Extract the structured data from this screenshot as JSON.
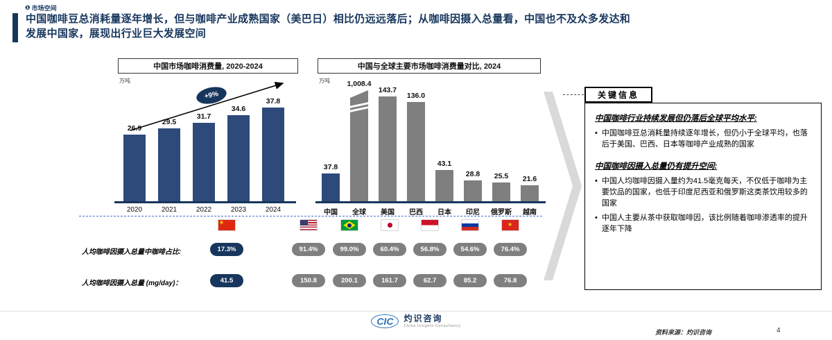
{
  "header": {
    "tag_icon": "❶",
    "tag_label": "市场空间",
    "title_line1": "中国咖啡豆总消耗量逐年增长，但与咖啡产业成熟国家（美巴日）相比仍远远落后；从咖啡因摄入总量看，中国也不及众多发达和",
    "title_line2": "发展中国家，展现出行业巨大发展空间"
  },
  "colors": {
    "navy": "#17365d",
    "bar_navy": "#2e4a7b",
    "bar_gray": "#7f7f7f",
    "dashed_line_blue": "#4472c4",
    "chevron_gray": "#d9d9d9",
    "logo_blue": "#2e75b6"
  },
  "chart_data": [
    {
      "type": "bar",
      "title": "中国市场咖啡消费量, 2020-2024",
      "unit": "万吨",
      "categories": [
        "2020",
        "2021",
        "2022",
        "2023",
        "2024"
      ],
      "values": [
        26.9,
        29.5,
        31.7,
        34.6,
        37.8
      ],
      "labels": [
        "26.9",
        "29.5",
        "31.7",
        "34.6",
        "37.8"
      ],
      "growth_label": "+9%",
      "bar_color": "#2e4a7b",
      "ylim": [
        0,
        40
      ],
      "grid": false,
      "legend": "none"
    },
    {
      "type": "bar",
      "title": "中国与全球主要市场咖啡消费量对比, 2024",
      "unit": "万吨",
      "categories": [
        "中国",
        "全球",
        "美国",
        "巴西",
        "日本",
        "印尼",
        "俄罗斯",
        "越南"
      ],
      "values": [
        37.8,
        1008.4,
        143.7,
        136.0,
        43.1,
        28.8,
        25.5,
        21.6
      ],
      "labels": [
        "37.8",
        "1,008.4",
        "143.7",
        "136.0",
        "43.1",
        "28.8",
        "25.5",
        "21.6"
      ],
      "bar_color": "#7f7f7f",
      "highlight": {
        "index": 0,
        "color": "#2e4a7b"
      },
      "axis_break_index": 1,
      "grid": false,
      "legend": "none"
    }
  ],
  "comparison": {
    "row1_label": "人均咖啡因摄入总量中咖啡占比:",
    "row2_label": "人均咖啡因摄入总量 (mg/day)：",
    "countries": [
      {
        "name": "中国",
        "flag": "china",
        "coffee_share": "17.3%",
        "intake_mg": "41.5",
        "highlight": true
      },
      {
        "name": "美国",
        "flag": "usa",
        "coffee_share": "91.4%",
        "intake_mg": "150.8"
      },
      {
        "name": "巴西",
        "flag": "brazil",
        "coffee_share": "99.0%",
        "intake_mg": "200.1"
      },
      {
        "name": "日本",
        "flag": "japan",
        "coffee_share": "60.4%",
        "intake_mg": "161.7"
      },
      {
        "name": "印尼",
        "flag": "indonesia",
        "coffee_share": "56.8%",
        "intake_mg": "62.7"
      },
      {
        "name": "俄罗斯",
        "flag": "russia",
        "coffee_share": "54.6%",
        "intake_mg": "85.2"
      },
      {
        "name": "越南",
        "flag": "vietnam",
        "coffee_share": "76.4%",
        "intake_mg": "76.8"
      }
    ]
  },
  "key_info": {
    "title": "关键信息",
    "sections": [
      {
        "heading": "中国咖啡行业持续发展但仍落后全球平均水平:",
        "bullets": [
          "中国咖啡豆总消耗量持续逐年增长，但仍小于全球平均，也落后于美国、巴西、日本等咖啡产业成熟的国家"
        ]
      },
      {
        "heading": "中国咖啡因摄入总量仍有提升空间:",
        "bullets": [
          "中国人均咖啡因摄入量约为41.5毫克每天，不仅低于咖啡为主要饮品的国家，也低于印度尼西亚和俄罗斯这类茶饮用较多的国家",
          "中国人主要从茶中获取咖啡因，该比例随着咖啡渗透率的提升逐年下降"
        ]
      }
    ]
  },
  "footer": {
    "logo_mark": "CIC",
    "logo_name": "灼识咨询",
    "logo_subtitle": "China Insights Consultancy",
    "source": "资料来源：灼识咨询",
    "page_number": "4"
  }
}
